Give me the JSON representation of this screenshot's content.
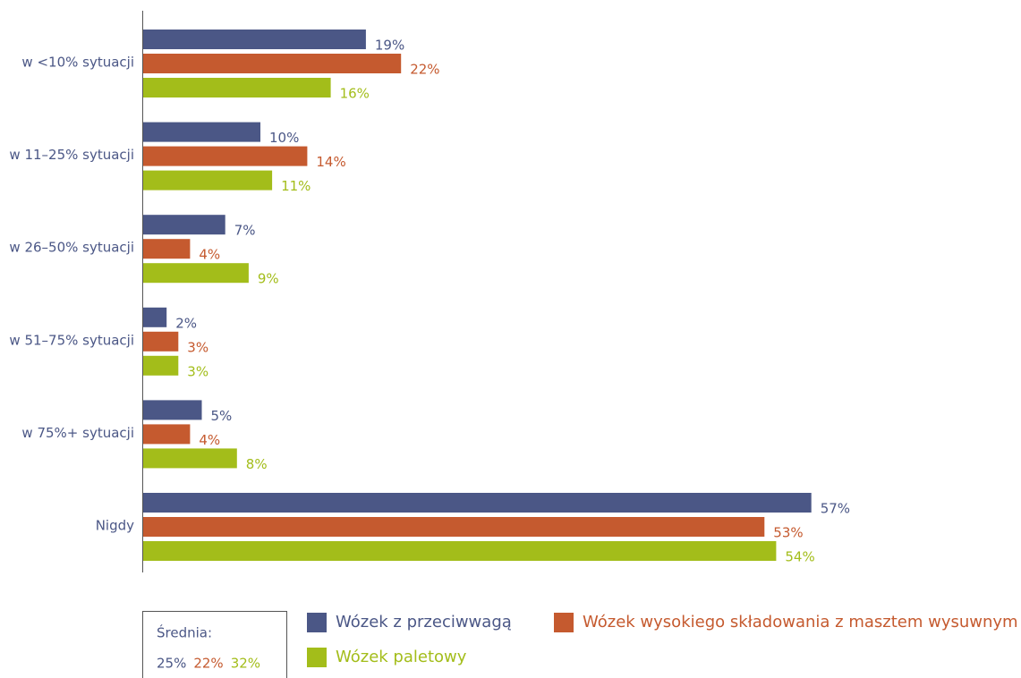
{
  "chart_data": {
    "type": "hbar",
    "categories": [
      "w <10% sytuacji",
      "w 11–25% sytuacji",
      "w 26–50% sytuacji",
      "w 51–75% sytuacji",
      "w 75%+ sytuacji",
      "Nigdy"
    ],
    "series": [
      {
        "name": "Wózek z przeciwwagą",
        "color": "#4b5786",
        "values": [
          19,
          10,
          7,
          2,
          5,
          57
        ],
        "value_labels": [
          "19%",
          "10%",
          "7%",
          "2%",
          "5%",
          "57%"
        ]
      },
      {
        "name": "Wózek wysokiego składowania z masztem wysuwnym",
        "color": "#c55a2f",
        "values": [
          22,
          14,
          4,
          3,
          4,
          53
        ],
        "value_labels": [
          "22%",
          "14%",
          "4%",
          "3%",
          "4%",
          "53%"
        ]
      },
      {
        "name": "Wózek paletowy",
        "color": "#a3bd1a",
        "values": [
          16,
          11,
          9,
          3,
          8,
          54
        ],
        "value_labels": [
          "16%",
          "11%",
          "9%",
          "3%",
          "8%",
          "54%"
        ]
      }
    ],
    "average": {
      "label": "Średnia:",
      "values": [
        25,
        22,
        32
      ],
      "value_labels": [
        "25%",
        "22%",
        "32%"
      ]
    }
  }
}
